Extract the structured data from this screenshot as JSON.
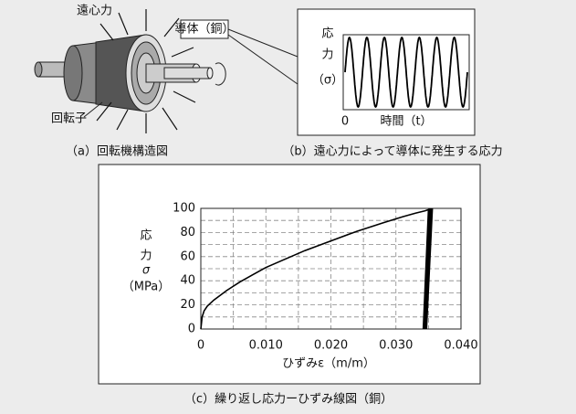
{
  "figure_a": {
    "label_force": "遠心力",
    "label_conductor": "導体（銅）",
    "label_rotor": "回転子",
    "caption": "（a）回転機構造図"
  },
  "figure_b": {
    "ylabel": [
      "応",
      "力",
      "（σ）"
    ],
    "origin": "0",
    "xlabel": "時間（t）",
    "caption": "（b）遠心力によって導体に発生する応力"
  },
  "chart_data": {
    "type": "line",
    "ylabel": [
      "応",
      "力",
      "σ",
      "（MPa）"
    ],
    "xlabel": "ひずみε（m/m）",
    "caption": "（c）繰り返し応力ーひずみ線図（銅）",
    "xlim": [
      0,
      0.04
    ],
    "ylim": [
      0,
      100
    ],
    "xticks": [
      0,
      {
        "value": 0.01,
        "label": "0.010"
      },
      {
        "value": 0.02,
        "label": "0.020"
      },
      {
        "value": 0.03,
        "label": "0.030"
      },
      {
        "value": 0.04,
        "label": "0.040"
      }
    ],
    "yticks": [
      0,
      20,
      40,
      60,
      80,
      100
    ],
    "x_minor_grid": [
      0.005,
      0.015,
      0.025,
      0.035
    ],
    "y_minor_grid": [
      10,
      30,
      50,
      70,
      90
    ],
    "grid": true,
    "series": [
      {
        "color": "#000000",
        "x": [
          0,
          0.0002,
          0.0005,
          0.001,
          0.002,
          0.004,
          0.006,
          0.008,
          0.01,
          0.013,
          0.016,
          0.02,
          0.024,
          0.028,
          0.031,
          0.033,
          0.0345,
          0.035
        ],
        "y": [
          0,
          10,
          15,
          19,
          24,
          32,
          39,
          45,
          51,
          58,
          65,
          73,
          81,
          88,
          93,
          96,
          98,
          99
        ]
      },
      {
        "color": "#000000",
        "x": [
          0.035,
          0.0342,
          0.0351,
          0.0343,
          0.0352,
          0.0344,
          0.0353,
          0.0344,
          0.0354,
          0.0345,
          0.0354,
          0.0346,
          0.0355,
          0.0346,
          0.0355,
          0.0347,
          0.0356,
          0.0347,
          0.0356
        ],
        "y": [
          99,
          0,
          100,
          0,
          100,
          0,
          100,
          0,
          100,
          0,
          100,
          0,
          100,
          0,
          100,
          0,
          100,
          0,
          100
        ]
      }
    ]
  }
}
